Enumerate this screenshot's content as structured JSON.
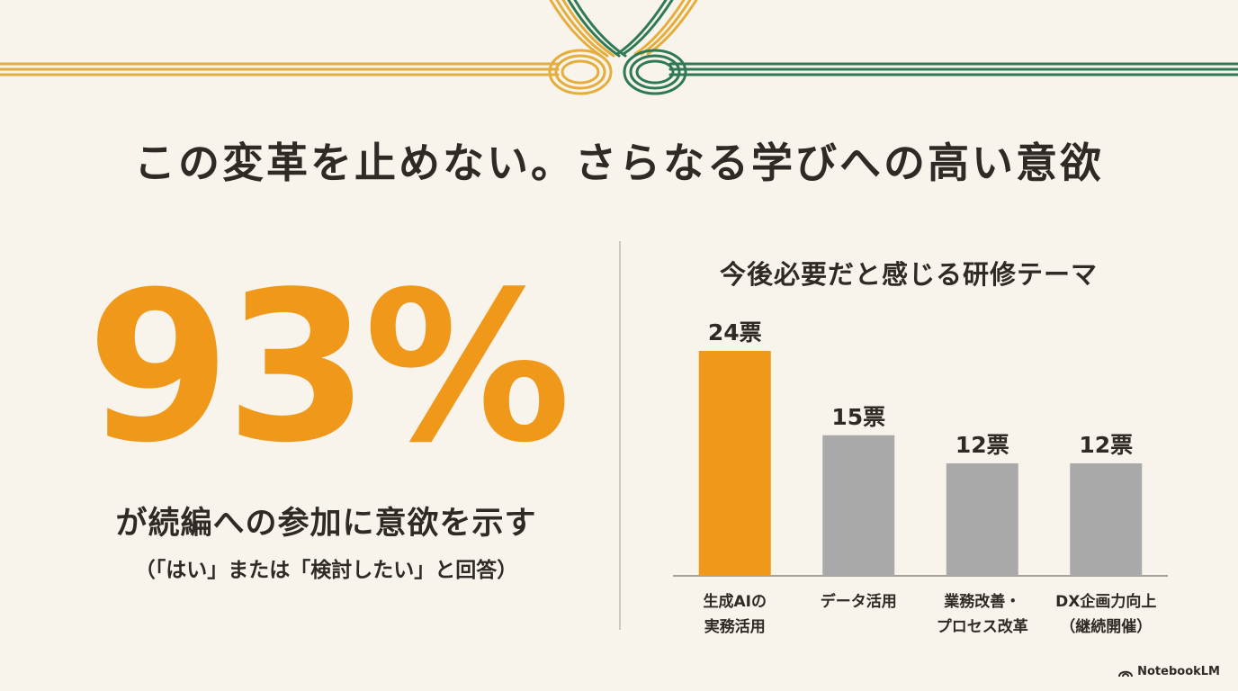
{
  "headline": "この変革を止めない。さらなる学びへの高い意欲",
  "stat": {
    "value": "93%",
    "caption": "が続編への参加に意欲を示す",
    "note": "（「はい」または「検討したい」と回答）"
  },
  "chart_data": {
    "type": "bar",
    "title": "今後必要だと感じる研修テーマ",
    "unit": "票",
    "categories": [
      [
        "生成AIの",
        "実務活用"
      ],
      [
        "データ活用"
      ],
      [
        "業務改善・",
        "プロセス改革"
      ],
      [
        "DX企画力向上",
        "（継続開催）"
      ]
    ],
    "values": [
      24,
      15,
      12,
      12
    ],
    "value_labels": [
      "24票",
      "15票",
      "12票",
      "12票"
    ],
    "highlight_index": 0,
    "ylim": [
      0,
      24
    ],
    "grid": false,
    "legend": "none"
  },
  "colors": {
    "accent": "#f0981a",
    "bar_default": "#a9a9a9",
    "cord_gold": "#e5ad3b",
    "cord_green": "#2f7a55",
    "background": "#f8f4ec"
  },
  "brand": {
    "icon": "notebooklm-logo-icon",
    "label": "NotebookLM"
  }
}
